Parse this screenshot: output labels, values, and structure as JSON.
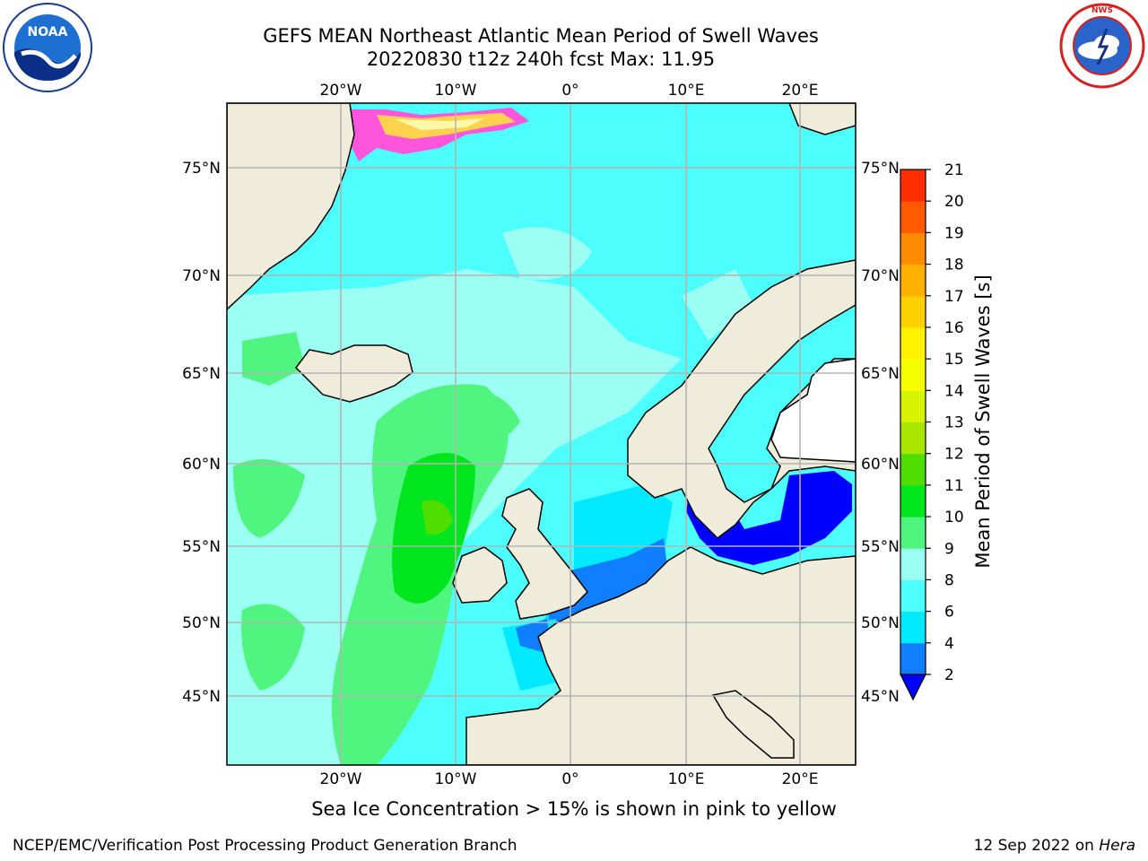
{
  "header": {
    "title_line1": "GEFS MEAN Northeast Atlantic Mean Period of Swell Waves",
    "title_line2": "20220830 t12z 240h fcst   Max: 11.95"
  },
  "logos": {
    "left": "noaa-logo",
    "right": "nws-logo"
  },
  "map": {
    "lon_labels": [
      "20°W",
      "10°W",
      "0°",
      "10°E",
      "20°E"
    ],
    "lat_labels": [
      "75°N",
      "70°N",
      "65°N",
      "60°N",
      "55°N",
      "50°N",
      "45°N"
    ],
    "land_color": "#efecdc",
    "ocean_dominant_color": "#4dfffc",
    "gridline_color": "#b4b4b4"
  },
  "colorbar": {
    "label": "Mean Period of Swell Waves [s]",
    "ticks": [
      "2",
      "4",
      "6",
      "8",
      "9",
      "10",
      "11",
      "12",
      "13",
      "14",
      "15",
      "16",
      "17",
      "18",
      "19",
      "20",
      "21"
    ],
    "colors": [
      "#0f7fff",
      "#00e9ff",
      "#4dfffc",
      "#9cfff3",
      "#4ff57e",
      "#00e61e",
      "#50dd00",
      "#a8e600",
      "#d6f400",
      "#f5ff00",
      "#fff200",
      "#ffd000",
      "#ffb000",
      "#ff8c00",
      "#ff5a00",
      "#ff2d00"
    ],
    "under_color": "#0000ff"
  },
  "sea_ice_note": "Sea Ice Concentration > 15% is shown in pink to yellow",
  "footer": {
    "left": "NCEP/EMC/Verification Post Processing Product Generation Branch",
    "right_date": "12 Sep 2022 on",
    "right_machine": "Hera"
  }
}
